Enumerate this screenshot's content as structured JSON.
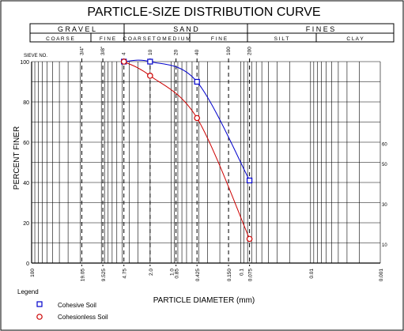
{
  "title": "PARTICLE-SIZE DISTRIBUTION CURVE",
  "header": {
    "row1": [
      "G R A V E L",
      "S A N D",
      "F I N E S"
    ],
    "row2": [
      "C O A R S E",
      "F I N E",
      "C O A R S E  T O  M E D I U M",
      "F I N E",
      "S I L T",
      "C L A Y"
    ]
  },
  "chart_data": {
    "type": "line",
    "title": "PARTICLE-SIZE DISTRIBUTION CURVE",
    "xlabel": "PARTICLE DIAMETER (mm)",
    "ylabel": "PERCENT FINER",
    "x_scale": "log",
    "x_reversed": true,
    "xlim": [
      100,
      0.001
    ],
    "ylim": [
      0,
      100
    ],
    "grid": true,
    "legend_title": "Legend",
    "legend_position": "bottom-left",
    "y_ticks": [
      0,
      20,
      40,
      60,
      80,
      100
    ],
    "x_tick_labels": [
      {
        "value": 100,
        "label": "100"
      },
      {
        "value": 19.05,
        "label": "19.05"
      },
      {
        "value": 9.525,
        "label": "9.525"
      },
      {
        "value": 4.75,
        "label": "4.75"
      },
      {
        "value": 2.0,
        "label": "2.0"
      },
      {
        "value": 1.0,
        "label": "1.0"
      },
      {
        "value": 0.85,
        "label": "0.85"
      },
      {
        "value": 0.425,
        "label": "0.425"
      },
      {
        "value": 0.15,
        "label": "0.150"
      },
      {
        "value": 0.1,
        "label": "0.1"
      },
      {
        "value": 0.075,
        "label": "0.075"
      },
      {
        "value": 0.01,
        "label": "0.01"
      },
      {
        "value": 0.001,
        "label": "0.001"
      }
    ],
    "sieve_label": "SIEVE NO.",
    "sieves": [
      {
        "value": 19.05,
        "label": "3/4\""
      },
      {
        "value": 9.525,
        "label": "3/8\""
      },
      {
        "value": 4.75,
        "label": "4"
      },
      {
        "value": 2.0,
        "label": "10"
      },
      {
        "value": 0.85,
        "label": "20"
      },
      {
        "value": 0.425,
        "label": "40"
      },
      {
        "value": 0.15,
        "label": "100"
      },
      {
        "value": 0.075,
        "label": "200"
      }
    ],
    "right_labels": [
      {
        "y": 59,
        "label": "60"
      },
      {
        "y": 49,
        "label": "50"
      },
      {
        "y": 29,
        "label": "30"
      },
      {
        "y": 9,
        "label": "10"
      }
    ],
    "series": [
      {
        "name": "Cohesive Soil",
        "color": "#0000cc",
        "marker": "square",
        "points": [
          [
            4.75,
            100
          ],
          [
            2.0,
            100
          ],
          [
            0.425,
            90
          ],
          [
            0.075,
            41
          ]
        ]
      },
      {
        "name": "Cohesionless Soil",
        "color": "#cc0000",
        "marker": "circle",
        "points": [
          [
            4.75,
            100
          ],
          [
            2.0,
            93
          ],
          [
            0.425,
            72
          ],
          [
            0.075,
            12
          ]
        ]
      }
    ]
  }
}
